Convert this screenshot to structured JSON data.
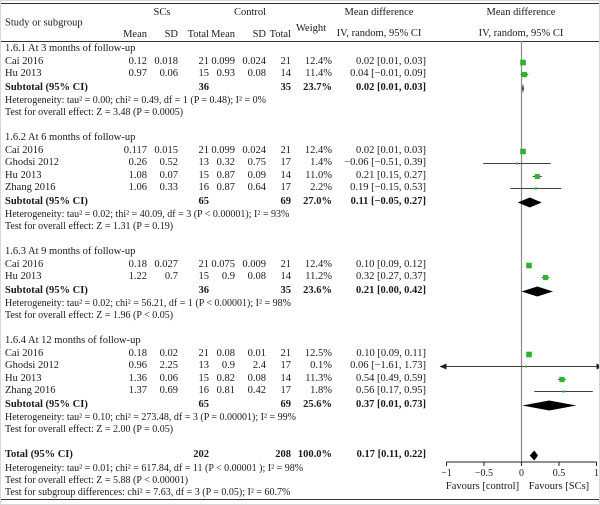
{
  "header": {
    "study": "Study or subgroup",
    "group_scs": "SCs",
    "group_control": "Control",
    "sub": [
      "Mean",
      "SD",
      "Total",
      "Mean",
      "SD",
      "Total"
    ],
    "weight": "Weight",
    "md_line1": "Mean difference",
    "md_line2": "IV, random, 95% CI",
    "plot_line1": "Mean difference",
    "plot_line2": "IV, random, 95% CI"
  },
  "colors": {
    "marker_green": "#2db32d",
    "diamond_black": "#000000",
    "zero_line_gray": "#8a8a8a",
    "ci_line": "#404040",
    "rule": "#333333"
  },
  "chart_data": {
    "type": "forest",
    "effect_measure": "Mean difference, IV, random, 95% CI",
    "x_axis": {
      "min": -1,
      "max": 1,
      "ticks": [
        -1,
        -0.5,
        0,
        0.5,
        1
      ],
      "tick_labels": [
        "−1",
        "−0.5",
        "0",
        "0.5",
        "1"
      ],
      "label_left": "Favours [control]",
      "label_right": "Favours [SCs]"
    },
    "sections": [
      {
        "title": "1.6.1 At 3 months of follow-up",
        "rows": [
          {
            "study": "Cai 2016",
            "mean1": "0.12",
            "sd1": "0.018",
            "total1": "21",
            "mean2": "0.099",
            "sd2": "0.024",
            "total2": "21",
            "weight": "12.4%",
            "md": "0.02 [0.01, 0.03]",
            "est": 0.02,
            "lo": 0.01,
            "hi": 0.03,
            "w": 12.4
          },
          {
            "study": "Hu 2013",
            "mean1": "0.97",
            "sd1": "0.06",
            "total1": "15",
            "mean2": "0.93",
            "sd2": "0.08",
            "total2": "14",
            "weight": "11.4%",
            "md": "0.04 [−0.01, 0.09]",
            "est": 0.04,
            "lo": -0.01,
            "hi": 0.09,
            "w": 11.4
          }
        ],
        "subtotal": {
          "label": "Subtotal (95% CI)",
          "total1": "36",
          "total2": "35",
          "weight": "23.7%",
          "md": "0.02 [0.01, 0.03]",
          "est": 0.02,
          "lo": 0.01,
          "hi": 0.03
        },
        "notes": [
          "Heterogeneity: tau² = 0.00; chi² = 0.49, df = 1 (P = 0.48); I² = 0%",
          "Test for overall effect: Z = 3.48 (P = 0.0005)"
        ]
      },
      {
        "title": "1.6.2 At 6 months of follow-up",
        "rows": [
          {
            "study": "Cai 2016",
            "mean1": "0.117",
            "sd1": "0.015",
            "total1": "21",
            "mean2": "0.099",
            "sd2": "0.024",
            "total2": "21",
            "weight": "12.4%",
            "md": "0.02 [0.01, 0.03]",
            "est": 0.02,
            "lo": 0.01,
            "hi": 0.03,
            "w": 12.4
          },
          {
            "study": "Ghodsi 2012",
            "mean1": "0.26",
            "sd1": "0.52",
            "total1": "13",
            "mean2": "0.32",
            "sd2": "0.75",
            "total2": "17",
            "weight": "1.4%",
            "md": "−0.06 [−0.51, 0.39]",
            "est": -0.06,
            "lo": -0.51,
            "hi": 0.39,
            "w": 1.4
          },
          {
            "study": "Hu 2013",
            "mean1": "1.08",
            "sd1": "0.07",
            "total1": "15",
            "mean2": "0.87",
            "sd2": "0.09",
            "total2": "14",
            "weight": "11.0%",
            "md": "0.21 [0.15, 0.27]",
            "est": 0.21,
            "lo": 0.15,
            "hi": 0.27,
            "w": 11.0
          },
          {
            "study": "Zhang 2016",
            "mean1": "1.06",
            "sd1": "0.33",
            "total1": "16",
            "mean2": "0.87",
            "sd2": "0.64",
            "total2": "17",
            "weight": "2.2%",
            "md": "0.19 [−0.15, 0.53]",
            "est": 0.19,
            "lo": -0.15,
            "hi": 0.53,
            "w": 2.2
          }
        ],
        "subtotal": {
          "label": "Subtotal (95% CI)",
          "total1": "65",
          "total2": "69",
          "weight": "27.0%",
          "md": "0.11 [−0.05, 0.27]",
          "est": 0.11,
          "lo": -0.05,
          "hi": 0.27
        },
        "notes": [
          "Heterogeneity: tau² = 0.02; thi² = 40.09, df = 3 (P < 0.00001); I² = 93%",
          "Test for overall effect: Z = 1.31 (P = 0.19)"
        ]
      },
      {
        "title": "1.6.3 At 9 months of follow-up",
        "rows": [
          {
            "study": "Cai 2016",
            "mean1": "0.18",
            "sd1": "0.027",
            "total1": "21",
            "mean2": "0.075",
            "sd2": "0.009",
            "total2": "21",
            "weight": "12.4%",
            "md": "0.10 [0.09, 0.12]",
            "est": 0.1,
            "lo": 0.09,
            "hi": 0.12,
            "w": 12.4
          },
          {
            "study": "Hu 2013",
            "mean1": "1.22",
            "sd1": "0.7",
            "total1": "15",
            "mean2": "0.9",
            "sd2": "0.08",
            "total2": "14",
            "weight": "11.2%",
            "md": "0.32 [0.27, 0.37]",
            "est": 0.32,
            "lo": 0.27,
            "hi": 0.37,
            "w": 11.2
          }
        ],
        "subtotal": {
          "label": "Subtotal (95% CI)",
          "total1": "36",
          "total2": "35",
          "weight": "23.6%",
          "md": "0.21 [0.00, 0.42]",
          "est": 0.21,
          "lo": 0.0,
          "hi": 0.42
        },
        "notes": [
          "Heterogeneity: tau² = 0.02; chi² = 56.21, df = 1 (P < 0.00001); I² = 98%",
          "Test for overall effect: Z = 1.96 (P < 0.05)"
        ]
      },
      {
        "title": "1.6.4 At 12 months of follow-up",
        "rows": [
          {
            "study": "Cai 2016",
            "mean1": "0.18",
            "sd1": "0.02",
            "total1": "21",
            "mean2": "0.08",
            "sd2": "0.01",
            "total2": "21",
            "weight": "12.5%",
            "md": "0.10 [0.09, 0.11]",
            "est": 0.1,
            "lo": 0.09,
            "hi": 0.11,
            "w": 12.5
          },
          {
            "study": "Ghodsi 2012",
            "mean1": "0.96",
            "sd1": "2.25",
            "total1": "13",
            "mean2": "0.9",
            "sd2": "2.4",
            "total2": "17",
            "weight": "0.1%",
            "md": "0.06 [−1.61, 1.73]",
            "est": 0.06,
            "lo": -1.61,
            "hi": 1.73,
            "w": 0.1
          },
          {
            "study": "Hu 2013",
            "mean1": "1.36",
            "sd1": "0.06",
            "total1": "15",
            "mean2": "0.82",
            "sd2": "0.08",
            "total2": "14",
            "weight": "11.3%",
            "md": "0.54 [0.49, 0.59]",
            "est": 0.54,
            "lo": 0.49,
            "hi": 0.59,
            "w": 11.3
          },
          {
            "study": "Zhang 2016",
            "mean1": "1.37",
            "sd1": "0.69",
            "total1": "16",
            "mean2": "0.81",
            "sd2": "0.42",
            "total2": "17",
            "weight": "1.8%",
            "md": "0.56 [0.17, 0.95]",
            "est": 0.56,
            "lo": 0.17,
            "hi": 0.95,
            "w": 1.8
          }
        ],
        "subtotal": {
          "label": "Subtotal (95% CI)",
          "total1": "65",
          "total2": "69",
          "weight": "25.6%",
          "md": "0.37 [0.01, 0.73]",
          "est": 0.37,
          "lo": 0.01,
          "hi": 0.73
        },
        "notes": [
          "Heterogeneity: tau² = 0.10; chi² = 273.48, df = 3 (P = 0.00001); I² = 99%",
          "Test for overall effect: Z = 2.00 (P = 0.05)"
        ]
      }
    ],
    "total": {
      "label": "Total (95% CI)",
      "total1": "202",
      "total2": "208",
      "weight": "100.0%",
      "md": "0.17 [0.11, 0.22]",
      "est": 0.17,
      "lo": 0.11,
      "hi": 0.22,
      "notes": [
        "Heterogeneity: tau² = 0.01; chi² = 617.84, df = 11 (P < 0.00001 ); I² = 98%",
        "Test for overall effect: Z = 5.88 (P < 0.00001)",
        "Test for subgroup differences: chi² = 7.63, df = 3 (P = 0.05); I² = 60.7%"
      ]
    }
  }
}
